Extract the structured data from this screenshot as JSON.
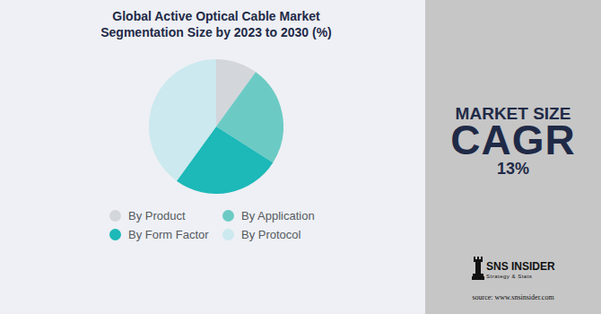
{
  "chart_data": {
    "type": "pie",
    "title": "Global Active Optical Cable Market Segmentation Size by 2023 to 2030 (%)",
    "categories": [
      "By Product",
      "By Application",
      "By Form Factor",
      "By Protocol"
    ],
    "values": [
      10,
      24,
      26,
      40
    ],
    "colors": [
      "#d3d6db",
      "#6ccac4",
      "#1db8b8",
      "#cbe9ee"
    ],
    "legend": "bottom"
  },
  "panel": {
    "market_size_label": "MARKET SIZE",
    "cagr_label": "CAGR",
    "cagr_value": "13%"
  },
  "logo": {
    "name": "SNS INSIDER",
    "tagline": "Strategy & Stats"
  },
  "source": "source: www.snsinsider.com"
}
